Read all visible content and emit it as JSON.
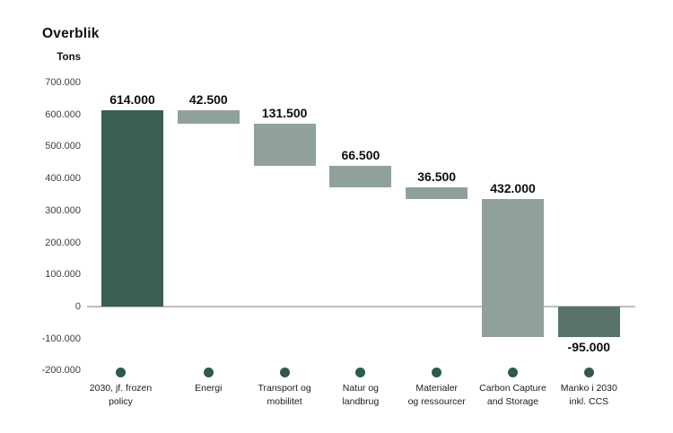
{
  "page": {
    "title": "Overblik"
  },
  "chart_data": {
    "type": "bar",
    "subtype": "waterfall",
    "title": "Overblik",
    "ylabel": "Tons",
    "legend": null,
    "grid": false,
    "axis": {
      "ymin": -200000,
      "ymax": 700000,
      "tick_step": 100000,
      "ticks": [
        {
          "value": 700000,
          "label": "700.000"
        },
        {
          "value": 600000,
          "label": "600.000"
        },
        {
          "value": 500000,
          "label": "500.000"
        },
        {
          "value": 400000,
          "label": "400.000"
        },
        {
          "value": 300000,
          "label": "300.000"
        },
        {
          "value": 200000,
          "label": "200.000"
        },
        {
          "value": 100000,
          "label": "100.000"
        },
        {
          "value": 0,
          "label": "0"
        },
        {
          "value": -100000,
          "label": "-100.000"
        },
        {
          "value": -200000,
          "label": "-200.000"
        }
      ]
    },
    "bars": [
      {
        "name": "2030-jf-frozen-policy",
        "category_lines": [
          "2030, jf. frozen",
          "policy"
        ],
        "value": 614000,
        "value_label": "614.000",
        "from": 0,
        "to": 614000,
        "role": "base"
      },
      {
        "name": "energi",
        "category_lines": [
          "Energi"
        ],
        "value": -42500,
        "value_label": "42.500",
        "from": 614000,
        "to": 571500,
        "role": "step"
      },
      {
        "name": "transport-og-mobilitet",
        "category_lines": [
          "Transport og",
          "mobilitet"
        ],
        "value": -131500,
        "value_label": "131.500",
        "from": 571500,
        "to": 440000,
        "role": "step"
      },
      {
        "name": "natur-og-landbrug",
        "category_lines": [
          "Natur og",
          "landbrug"
        ],
        "value": -66500,
        "value_label": "66.500",
        "from": 440000,
        "to": 373500,
        "role": "step"
      },
      {
        "name": "materialer-og-ressourcer",
        "category_lines": [
          "Materialer",
          "og ressourcer"
        ],
        "value": -36500,
        "value_label": "36.500",
        "from": 373500,
        "to": 337000,
        "role": "step"
      },
      {
        "name": "carbon-capture-and-storage",
        "category_lines": [
          "Carbon Capture",
          "and Storage"
        ],
        "value": -432000,
        "value_label": "432.000",
        "from": 337000,
        "to": -95000,
        "role": "step"
      },
      {
        "name": "manko-i-2030-inkl-ccs",
        "category_lines": [
          "Manko i 2030",
          "inkl. CCS"
        ],
        "value": -95000,
        "value_label": "-95.000",
        "from": 0,
        "to": -95000,
        "role": "result"
      }
    ],
    "colors": {
      "base": "#3A5F51",
      "step": "#90A199",
      "result": "#587468",
      "dot": "#2E5A4B",
      "axis_line": "#BDBDBD"
    }
  }
}
